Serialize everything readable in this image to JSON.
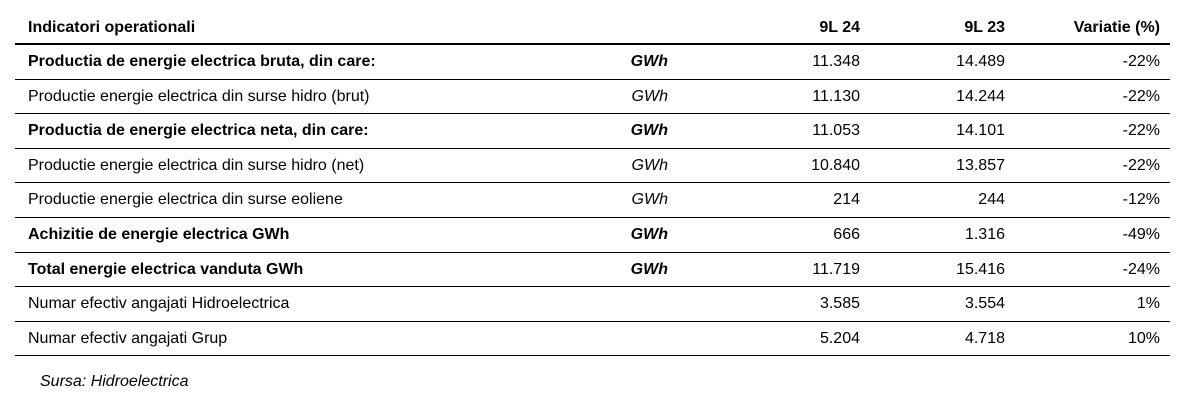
{
  "table": {
    "header": [
      "Indicatori operationali",
      "9L 24",
      "9L 23",
      "Variatie (%)"
    ],
    "rows": [
      {
        "label": "Productia de energie electrica bruta, din care:",
        "unit": "GWh",
        "cells": [
          "11.348",
          "14.489",
          "-22%"
        ],
        "bold": true
      },
      {
        "label": "Productie energie electrica din surse hidro (brut)",
        "unit": "GWh",
        "cells": [
          "11.130",
          "14.244",
          "-22%"
        ],
        "bold": false
      },
      {
        "label": "Productia de energie electrica neta, din care:",
        "unit": "GWh",
        "cells": [
          "11.053",
          "14.101",
          "-22%"
        ],
        "bold": true
      },
      {
        "label": "Productie energie electrica din surse hidro (net)",
        "unit": "GWh",
        "cells": [
          "10.840",
          "13.857",
          "-22%"
        ],
        "bold": false
      },
      {
        "label": "Productie energie electrica din surse eoliene",
        "unit": "GWh",
        "cells": [
          "214",
          "244",
          "-12%"
        ],
        "bold": false
      },
      {
        "label": "Achizitie de energie electrica GWh",
        "unit": "GWh",
        "cells": [
          "666",
          "1.316",
          "-49%"
        ],
        "bold": true
      },
      {
        "label": "Total energie electrica vanduta GWh",
        "unit": "GWh",
        "cells": [
          "11.719",
          "15.416",
          "-24%"
        ],
        "bold": true
      },
      {
        "label": "Numar efectiv angajati Hidroelectrica",
        "cells": [
          "3.585",
          "3.554",
          "1%"
        ],
        "bold": false
      },
      {
        "label": "Numar efectiv angajati Grup",
        "cells": [
          "5.204",
          "4.718",
          "10%"
        ],
        "bold": false
      }
    ],
    "source": "Sursa: Hidroelectrica"
  }
}
